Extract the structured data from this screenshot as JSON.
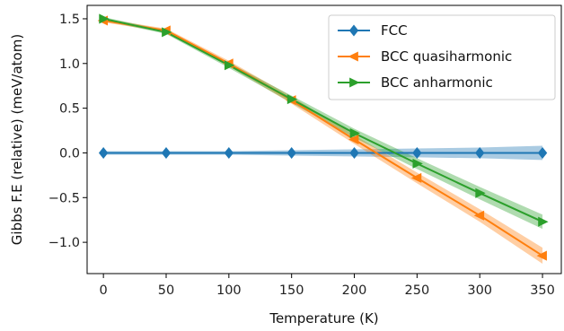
{
  "chart_data": {
    "type": "line",
    "xlabel": "Temperature (K)",
    "ylabel": "Gibbs F.E (relative) (meV/atom)",
    "xlim": [
      -13,
      365
    ],
    "ylim": [
      -1.35,
      1.65
    ],
    "xticks": [
      0,
      50,
      100,
      150,
      200,
      250,
      300,
      350
    ],
    "yticks": [
      -1.0,
      -0.5,
      0.0,
      0.5,
      1.0,
      1.5
    ],
    "ytick_labels": [
      "−1.0",
      "−0.5",
      "0.0",
      "0.5",
      "1.0",
      "1.5"
    ],
    "grid": false,
    "legend_position": "top-right",
    "x": [
      0,
      50,
      100,
      150,
      200,
      250,
      300,
      350
    ],
    "series": [
      {
        "name": "FCC",
        "color": "#1f77b4",
        "marker": "diamond",
        "values": [
          0.0,
          0.0,
          0.0,
          0.0,
          0.0,
          0.0,
          0.0,
          0.0
        ],
        "band": [
          0.02,
          0.02,
          0.02,
          0.03,
          0.04,
          0.05,
          0.06,
          0.08
        ]
      },
      {
        "name": "BCC quasiharmonic",
        "color": "#ff7f0e",
        "marker": "triangle-left",
        "values": [
          1.48,
          1.37,
          1.0,
          0.59,
          0.15,
          -0.28,
          -0.7,
          -1.15
        ],
        "band": [
          0.02,
          0.02,
          0.03,
          0.04,
          0.05,
          0.06,
          0.07,
          0.09
        ]
      },
      {
        "name": "BCC anharmonic",
        "color": "#2ca02c",
        "marker": "triangle-right",
        "values": [
          1.5,
          1.35,
          0.98,
          0.6,
          0.22,
          -0.12,
          -0.45,
          -0.77
        ],
        "band": [
          0.02,
          0.02,
          0.03,
          0.04,
          0.05,
          0.06,
          0.07,
          0.08
        ]
      }
    ]
  }
}
